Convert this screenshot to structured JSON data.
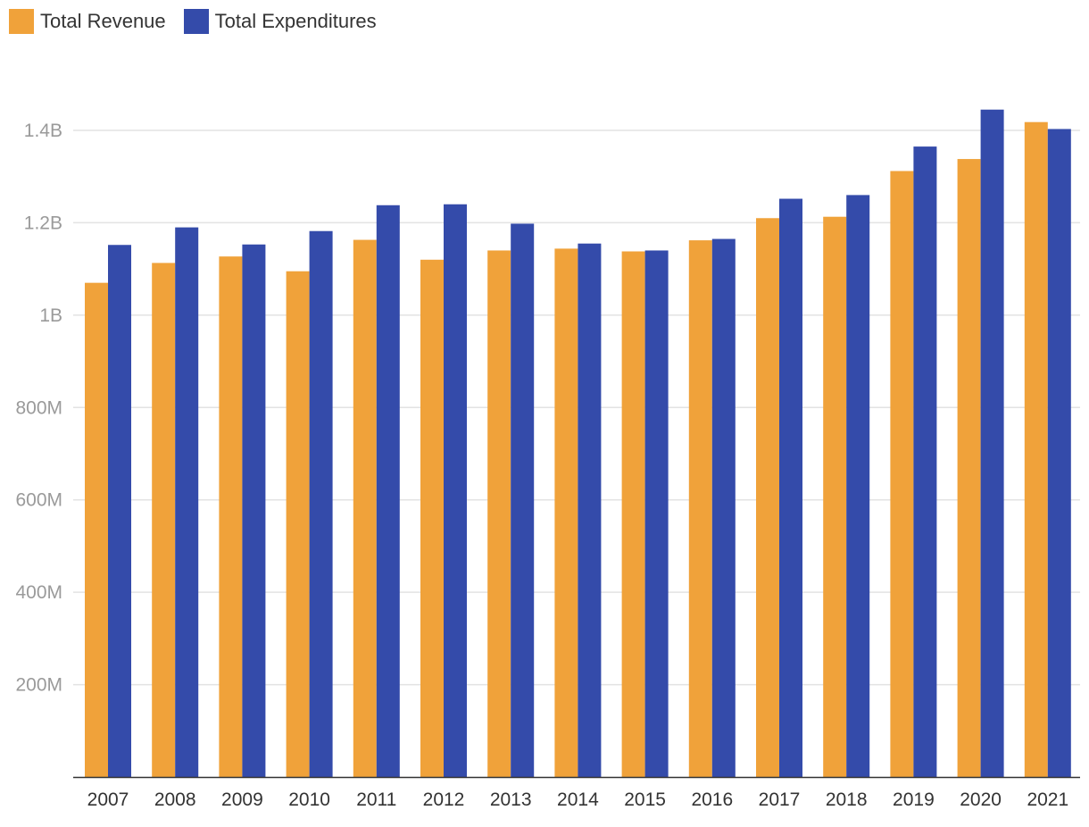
{
  "chart_data": {
    "type": "bar",
    "title": "",
    "xlabel": "",
    "ylabel": "",
    "categories": [
      "2007",
      "2008",
      "2009",
      "2010",
      "2011",
      "2012",
      "2013",
      "2014",
      "2015",
      "2016",
      "2017",
      "2018",
      "2019",
      "2020",
      "2021"
    ],
    "series": [
      {
        "name": "Total Revenue",
        "color": "#F0A23A",
        "values": [
          1070000000,
          1113000000,
          1127000000,
          1095000000,
          1163000000,
          1120000000,
          1140000000,
          1144000000,
          1138000000,
          1162000000,
          1210000000,
          1213000000,
          1312000000,
          1338000000,
          1418000000
        ]
      },
      {
        "name": "Total Expenditures",
        "color": "#344BAA",
        "values": [
          1152000000,
          1190000000,
          1153000000,
          1182000000,
          1238000000,
          1240000000,
          1198000000,
          1155000000,
          1140000000,
          1165000000,
          1252000000,
          1260000000,
          1365000000,
          1445000000,
          1403000000
        ]
      }
    ],
    "y_ticks": [
      {
        "value": 200000000,
        "label": "200M"
      },
      {
        "value": 400000000,
        "label": "400M"
      },
      {
        "value": 600000000,
        "label": "600M"
      },
      {
        "value": 800000000,
        "label": "800M"
      },
      {
        "value": 1000000000,
        "label": "1B"
      },
      {
        "value": 1200000000,
        "label": "1.2B"
      },
      {
        "value": 1400000000,
        "label": "1.4B"
      }
    ],
    "ylim": [
      0,
      1400000000
    ],
    "grid": true,
    "legend": "top-left"
  }
}
